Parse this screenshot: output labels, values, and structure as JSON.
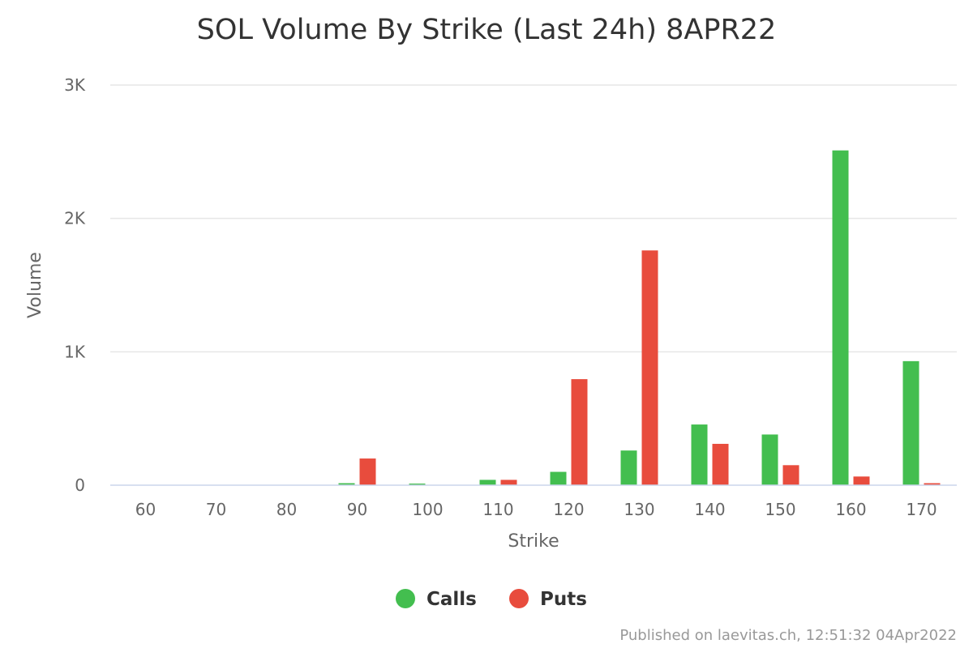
{
  "chart_data": {
    "type": "bar",
    "title": "SOL Volume By Strike (Last 24h) 8APR22",
    "xlabel": "Strike",
    "ylabel": "Volume",
    "categories": [
      "60",
      "70",
      "80",
      "90",
      "100",
      "110",
      "120",
      "130",
      "140",
      "150",
      "160",
      "170"
    ],
    "series": [
      {
        "name": "Calls",
        "color": "#43be4f",
        "values": [
          0,
          0,
          0,
          15,
          12,
          40,
          100,
          260,
          455,
          380,
          2510,
          930
        ]
      },
      {
        "name": "Puts",
        "color": "#e84c3d",
        "values": [
          0,
          0,
          0,
          200,
          0,
          40,
          795,
          1760,
          310,
          150,
          65,
          15
        ]
      }
    ],
    "ylim": [
      0,
      3000
    ],
    "yticks": [
      {
        "value": 0,
        "label": "0"
      },
      {
        "value": 1000,
        "label": "1K"
      },
      {
        "value": 2000,
        "label": "2K"
      },
      {
        "value": 3000,
        "label": "3K"
      }
    ],
    "grid": true,
    "legend": "bottom-center"
  },
  "credit": "Published on laevitas.ch, 12:51:32 04Apr2022"
}
